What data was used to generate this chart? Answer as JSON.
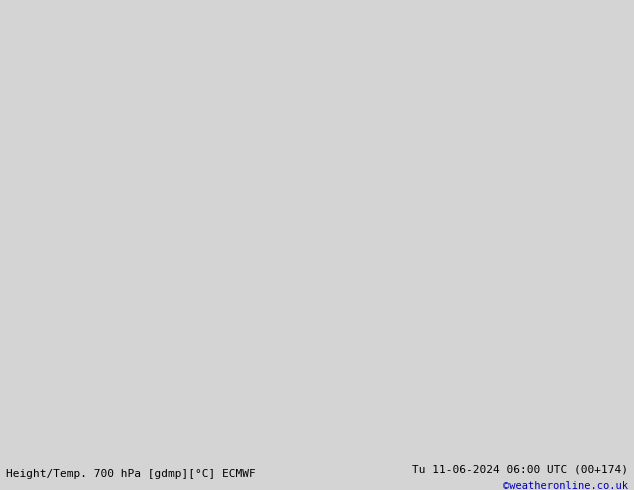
{
  "title_left": "Height/Temp. 700 hPa [gdmp][°C] ECMWF",
  "title_right": "Tu 11-06-2024 06:00 UTC (00+174)",
  "credit": "©weatheronline.co.uk",
  "background_color": "#d4d4d4",
  "land_color": "#b8e8b0",
  "border_color": "#888888",
  "coastline_color": "#333333",
  "fig_width": 6.34,
  "fig_height": 4.9,
  "dpi": 100,
  "bottom_text_color": "#000000",
  "credit_color": "#0000bb",
  "extent": [
    -95,
    -18,
    -58,
    16
  ],
  "contour_color": "#000000",
  "temp_magenta": "#cc0077",
  "temp_red": "#dd4400",
  "temp_orange": "#ff9900",
  "temp_green": "#00bb00"
}
